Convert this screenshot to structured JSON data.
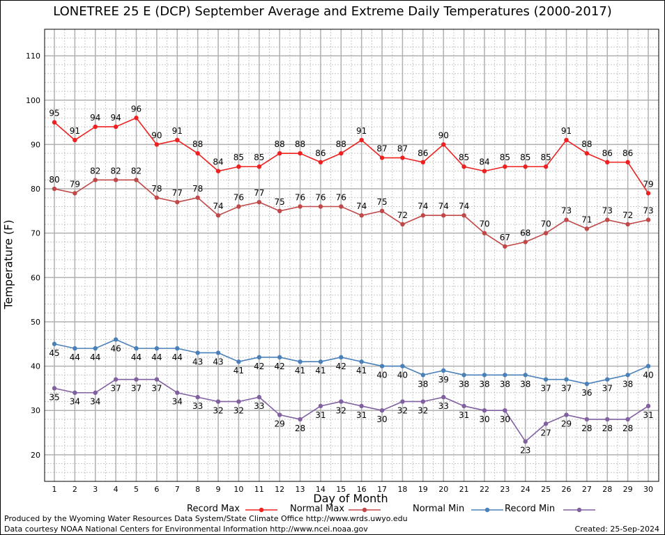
{
  "title": "LONETREE 25 E (DCP) September Average and Extreme Daily Temperatures (2000-2017)",
  "footer": {
    "line1": "Produced by the Wyoming Water Resources Data System/State Climate Office http://www.wrds.uwyo.edu",
    "line2": "Data courtesy NOAA National Centers for Environmental Information http://www.ncei.noaa.gov",
    "created": "Created:  25-Sep-2024"
  },
  "chart_data": {
    "type": "line",
    "title": "LONETREE 25 E (DCP) September Average and Extreme Daily Temperatures (2000-2017)",
    "xlabel": "Day of Month",
    "ylabel": "Temperature (F)",
    "x": [
      1,
      2,
      3,
      4,
      5,
      6,
      7,
      8,
      9,
      10,
      11,
      12,
      13,
      14,
      15,
      16,
      17,
      18,
      19,
      20,
      21,
      22,
      23,
      24,
      25,
      26,
      27,
      28,
      29,
      30
    ],
    "xlim": [
      1,
      30
    ],
    "ylim": [
      14,
      116
    ],
    "yticks": [
      20,
      30,
      40,
      50,
      60,
      70,
      80,
      90,
      100,
      110
    ],
    "grid": true,
    "legend_position": "bottom",
    "series": [
      {
        "name": "Record Max",
        "color": "#ee2020",
        "label_pos": "above",
        "values": [
          95,
          91,
          94,
          94,
          96,
          90,
          91,
          88,
          84,
          85,
          85,
          88,
          88,
          86,
          88,
          91,
          87,
          87,
          86,
          90,
          85,
          84,
          85,
          85,
          85,
          91,
          88,
          86,
          86,
          79
        ]
      },
      {
        "name": "Normal Max",
        "color": "#c04848",
        "label_pos": "above",
        "values": [
          80,
          79,
          82,
          82,
          82,
          78,
          77,
          78,
          74,
          76,
          77,
          75,
          76,
          76,
          76,
          74,
          75,
          72,
          74,
          74,
          74,
          70,
          67,
          68,
          70,
          73,
          71,
          73,
          72,
          73
        ]
      },
      {
        "name": "Normal Min",
        "color": "#4a80b8",
        "label_pos": "below",
        "values": [
          45,
          44,
          44,
          46,
          44,
          44,
          44,
          43,
          43,
          41,
          42,
          42,
          41,
          41,
          42,
          41,
          40,
          40,
          38,
          39,
          38,
          38,
          38,
          38,
          37,
          37,
          36,
          37,
          38,
          40
        ]
      },
      {
        "name": "Record Min",
        "color": "#8060a0",
        "label_pos": "below",
        "values": [
          35,
          34,
          34,
          37,
          37,
          37,
          34,
          33,
          32,
          32,
          33,
          29,
          28,
          31,
          32,
          31,
          30,
          32,
          32,
          33,
          31,
          30,
          30,
          23,
          27,
          29,
          28,
          28,
          28,
          31
        ]
      }
    ]
  }
}
